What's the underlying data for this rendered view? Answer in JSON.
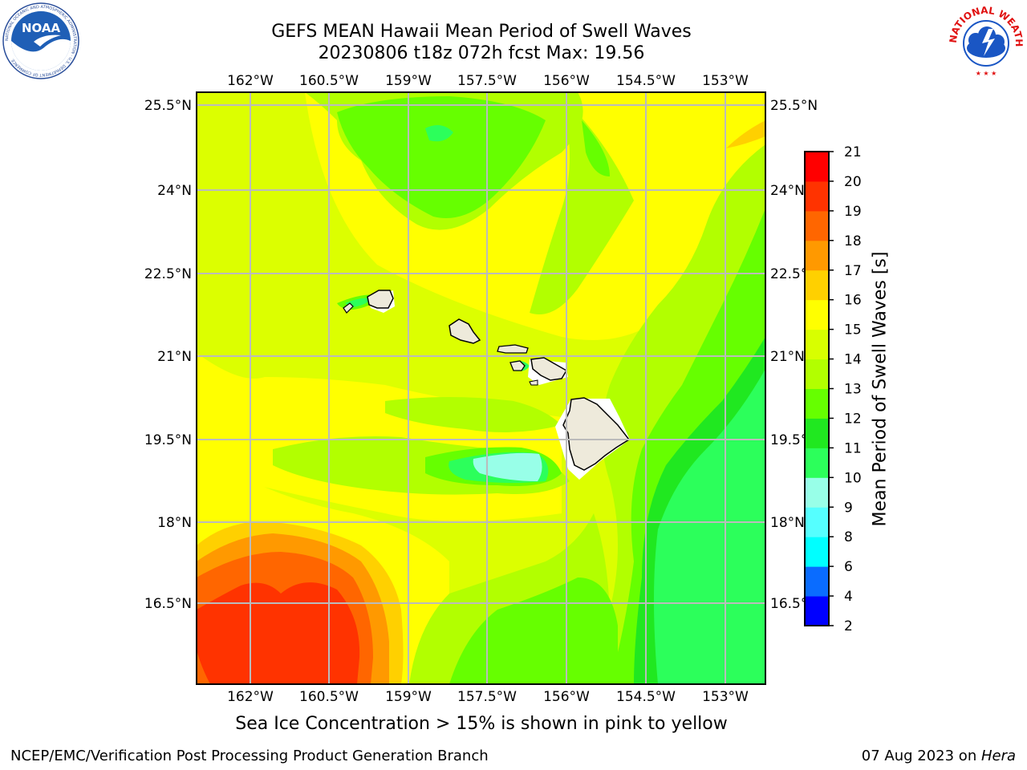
{
  "title": {
    "line1": "GEFS MEAN Hawaii Mean Period of Swell Waves",
    "line2": "20230806 t18z 072h fcst   Max: 19.56"
  },
  "logos": {
    "left": "NOAA",
    "left_ring_text": "NATIONAL OCEANIC AND ATMOSPHERIC ADMINISTRATION · U.S. DEPARTMENT OF COMMERCE",
    "right_ring_text": "NATIONAL WEATHER SERVICE"
  },
  "axes": {
    "x_ticks": [
      "162°W",
      "160.5°W",
      "159°W",
      "157.5°W",
      "156°W",
      "154.5°W",
      "153°W"
    ],
    "y_ticks": [
      "25.5°N",
      "24°N",
      "22.5°N",
      "21°N",
      "19.5°N",
      "18°N",
      "16.5°N"
    ]
  },
  "colorbar": {
    "title": "Mean Period of Swell Waves [s]",
    "levels": [
      2,
      4,
      6,
      8,
      9,
      10,
      11,
      12,
      13,
      14,
      15,
      16,
      17,
      18,
      19,
      20,
      21
    ],
    "colors": [
      "#0000ff",
      "#0a6cff",
      "#00ffff",
      "#55ffff",
      "#98ffe8",
      "#2cff5b",
      "#20e820",
      "#66ff00",
      "#b2ff00",
      "#d8ff00",
      "#ffff00",
      "#ffd000",
      "#ff9900",
      "#ff6600",
      "#ff3300",
      "#ff0000"
    ]
  },
  "map_colors": {
    "yellow": "#ffff00",
    "yellow_green": "#d8ff00",
    "light_green": "#b2ff00",
    "green": "#66ff00",
    "bright_green": "#20e820",
    "sea_green": "#2cff5b",
    "aqua": "#98ffe8",
    "orange_yellow": "#ffd000",
    "orange": "#ff9900",
    "dark_orange": "#ff6600",
    "red_orange": "#ff3300",
    "land": "#eeeadb",
    "grid": "#bbbbbb"
  },
  "subtitle": "Sea Ice Concentration > 15% is shown in pink to yellow",
  "footer": {
    "left": "NCEP/EMC/Verification Post Processing Product Generation Branch",
    "right_date": "07 Aug 2023 on ",
    "right_host": "Hera"
  }
}
